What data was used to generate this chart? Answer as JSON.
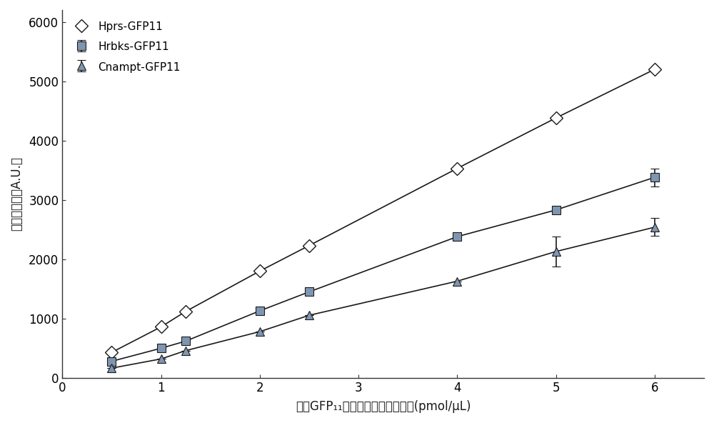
{
  "hrbks_x": [
    0.5,
    1.0,
    1.25,
    2.0,
    2.5,
    4.0,
    5.0,
    6.0
  ],
  "hrbks_y": [
    280,
    500,
    620,
    1130,
    1450,
    2380,
    2830,
    3380
  ],
  "hrbks_yerr": [
    null,
    null,
    null,
    null,
    null,
    null,
    null,
    150
  ],
  "hprs_x": [
    0.5,
    1.0,
    1.25,
    2.0,
    2.5,
    4.0,
    5.0,
    6.0
  ],
  "hprs_y": [
    430,
    860,
    1120,
    1800,
    2230,
    3530,
    4380,
    5200
  ],
  "hprs_yerr": [
    null,
    null,
    null,
    null,
    null,
    null,
    null,
    null
  ],
  "cnampt_x": [
    0.5,
    1.0,
    1.25,
    2.0,
    2.5,
    4.0,
    5.0,
    6.0
  ],
  "cnampt_y": [
    165,
    320,
    460,
    780,
    1055,
    1630,
    2130,
    2540
  ],
  "cnampt_yerr": [
    null,
    null,
    null,
    null,
    null,
    null,
    250,
    150
  ],
  "hrbks_color": "#7f96b2",
  "hprs_color": "#808080",
  "cnampt_color": "#7f96b2",
  "line_color": "#1a1a1a",
  "xlabel": "带有GFP₁₁短肽的不同蛋白的浓度(pmol/μL)",
  "ylabel": "荧光强度值（A.U.）",
  "xlim": [
    0,
    6.5
  ],
  "ylim": [
    0,
    6200
  ],
  "xticks": [
    0,
    1,
    2,
    3,
    4,
    5,
    6
  ],
  "yticks": [
    0,
    1000,
    2000,
    3000,
    4000,
    5000,
    6000
  ],
  "legend_hrbks": "Hrbks-GFP11",
  "legend_hprs": "Hprs-GFP11",
  "legend_cnampt": "Cnampt-GFP11",
  "fig_width": 10.0,
  "fig_height": 5.92,
  "dpi": 100
}
